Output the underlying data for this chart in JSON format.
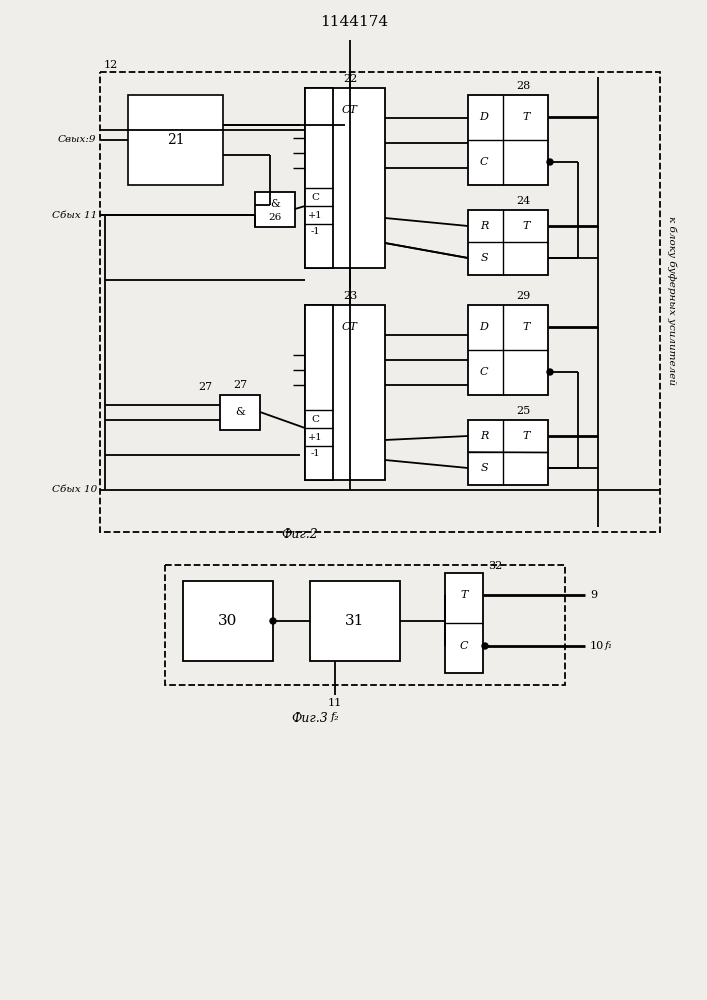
{
  "title": "1144174",
  "fig2_label": "Фиг.2",
  "fig3_label": "Фиг.3",
  "cbyx9": "Свых:9",
  "cbyx11": "Сбых 11",
  "cbyx10": "Сбых 10",
  "rotated_text": "к блоку буферных усилителей",
  "bg_color": "#f0eeea"
}
